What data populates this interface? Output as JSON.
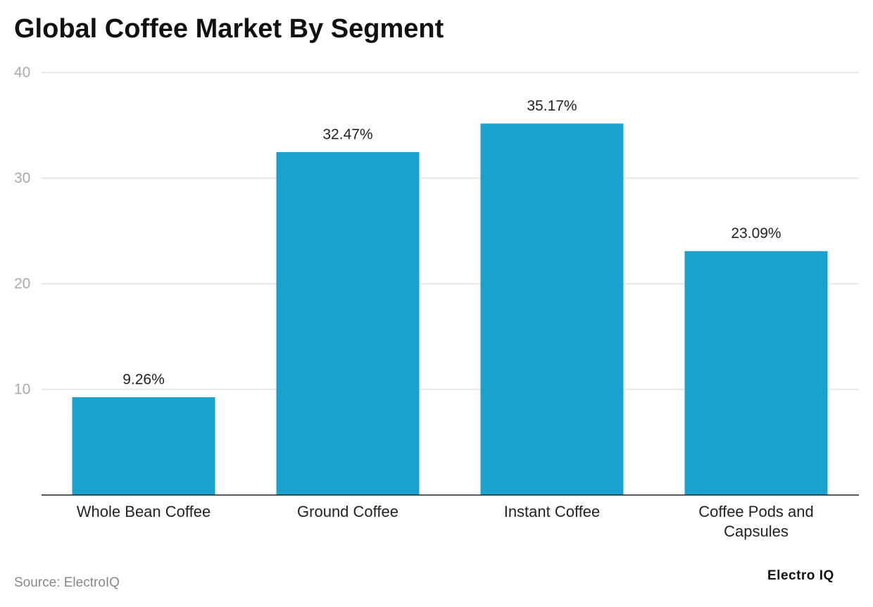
{
  "chart_data": {
    "type": "bar",
    "title": "Global Coffee Market By Segment",
    "categories": [
      "Whole Bean Coffee",
      "Ground Coffee",
      "Instant Coffee",
      "Coffee Pods and Capsules"
    ],
    "values": [
      9.26,
      32.47,
      35.17,
      23.09
    ],
    "value_labels": [
      "9.26%",
      "32.47%",
      "35.17%",
      "23.09%"
    ],
    "color": "#1aa1cd",
    "ylim": [
      0,
      40
    ],
    "yticks": [
      10,
      20,
      30,
      40
    ],
    "grid": true,
    "source": "Source: ElectroIQ",
    "brand": "Electro IQ"
  }
}
